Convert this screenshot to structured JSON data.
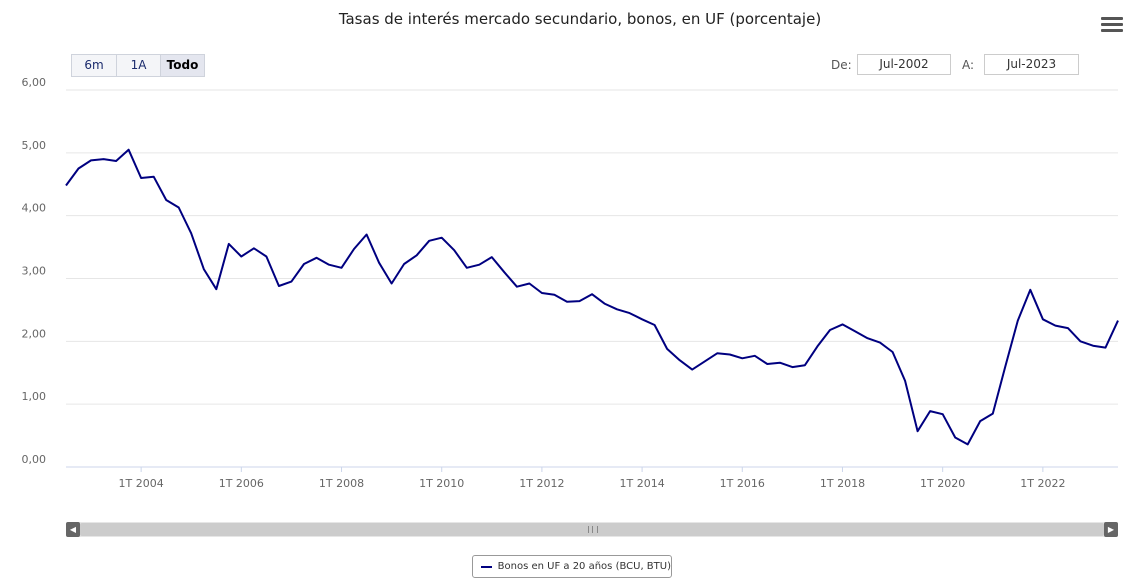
{
  "title": "Tasas de interés mercado secundario, bonos, en UF (porcentaje)",
  "range_buttons": [
    {
      "label": "6m"
    },
    {
      "label": "1A"
    },
    {
      "label": "Todo"
    }
  ],
  "date_from": {
    "label": "De:",
    "value": "Jul-2002"
  },
  "date_to": {
    "label": "A:",
    "value": "Jul-2023"
  },
  "menu_icon": "hamburger-menu-icon",
  "colors": {
    "series": "#000080",
    "grid": "#e6e6e6"
  },
  "chart_data": {
    "type": "line",
    "title": "Tasas de interés mercado secundario, bonos, en UF (porcentaje)",
    "xlabel": "",
    "ylabel": "",
    "xlim": [
      "2002-07",
      "2023-07"
    ],
    "ylim": [
      0,
      6
    ],
    "yticks": [
      "0,00",
      "1,00",
      "2,00",
      "3,00",
      "4,00",
      "5,00",
      "6,00"
    ],
    "xticks": [
      "1T 2004",
      "1T 2006",
      "1T 2008",
      "1T 2010",
      "1T 2012",
      "1T 2014",
      "1T 2016",
      "1T 2018",
      "1T 2020",
      "1T 2022"
    ],
    "grid": true,
    "legend_position": "bottom-center",
    "series": [
      {
        "name": "Bonos en UF a 20 años (BCU, BTU)",
        "color": "#000080",
        "points": [
          [
            "2002-07",
            4.48
          ],
          [
            "2002-10",
            4.75
          ],
          [
            "2003-01",
            4.88
          ],
          [
            "2003-04",
            4.9
          ],
          [
            "2003-07",
            4.87
          ],
          [
            "2003-10",
            5.05
          ],
          [
            "2004-01",
            4.6
          ],
          [
            "2004-04",
            4.62
          ],
          [
            "2004-07",
            4.25
          ],
          [
            "2004-10",
            4.13
          ],
          [
            "2005-01",
            3.72
          ],
          [
            "2005-04",
            3.15
          ],
          [
            "2005-07",
            2.83
          ],
          [
            "2005-10",
            3.55
          ],
          [
            "2006-01",
            3.35
          ],
          [
            "2006-04",
            3.48
          ],
          [
            "2006-07",
            3.35
          ],
          [
            "2006-10",
            2.88
          ],
          [
            "2007-01",
            2.95
          ],
          [
            "2007-04",
            3.23
          ],
          [
            "2007-07",
            3.33
          ],
          [
            "2007-10",
            3.22
          ],
          [
            "2008-01",
            3.17
          ],
          [
            "2008-04",
            3.47
          ],
          [
            "2008-07",
            3.7
          ],
          [
            "2008-10",
            3.25
          ],
          [
            "2009-01",
            2.92
          ],
          [
            "2009-04",
            3.23
          ],
          [
            "2009-07",
            3.37
          ],
          [
            "2009-10",
            3.6
          ],
          [
            "2010-01",
            3.65
          ],
          [
            "2010-04",
            3.45
          ],
          [
            "2010-07",
            3.17
          ],
          [
            "2010-10",
            3.22
          ],
          [
            "2011-01",
            3.34
          ],
          [
            "2011-04",
            3.1
          ],
          [
            "2011-07",
            2.87
          ],
          [
            "2011-10",
            2.92
          ],
          [
            "2012-01",
            2.77
          ],
          [
            "2012-04",
            2.74
          ],
          [
            "2012-07",
            2.63
          ],
          [
            "2012-10",
            2.64
          ],
          [
            "2013-01",
            2.75
          ],
          [
            "2013-04",
            2.6
          ],
          [
            "2013-07",
            2.51
          ],
          [
            "2013-10",
            2.45
          ],
          [
            "2014-01",
            2.35
          ],
          [
            "2014-04",
            2.26
          ],
          [
            "2014-07",
            1.88
          ],
          [
            "2014-10",
            1.7
          ],
          [
            "2015-01",
            1.55
          ],
          [
            "2015-04",
            1.68
          ],
          [
            "2015-07",
            1.81
          ],
          [
            "2015-10",
            1.79
          ],
          [
            "2016-01",
            1.73
          ],
          [
            "2016-04",
            1.77
          ],
          [
            "2016-07",
            1.64
          ],
          [
            "2016-10",
            1.66
          ],
          [
            "2017-01",
            1.59
          ],
          [
            "2017-04",
            1.62
          ],
          [
            "2017-07",
            1.92
          ],
          [
            "2017-10",
            2.18
          ],
          [
            "2018-01",
            2.27
          ],
          [
            "2018-04",
            2.16
          ],
          [
            "2018-07",
            2.05
          ],
          [
            "2018-10",
            1.98
          ],
          [
            "2019-01",
            1.83
          ],
          [
            "2019-04",
            1.37
          ],
          [
            "2019-07",
            0.57
          ],
          [
            "2019-10",
            0.89
          ],
          [
            "2020-01",
            0.84
          ],
          [
            "2020-04",
            0.47
          ],
          [
            "2020-07",
            0.36
          ],
          [
            "2020-10",
            0.73
          ],
          [
            "2021-01",
            0.85
          ],
          [
            "2021-04",
            1.6
          ],
          [
            "2021-07",
            2.33
          ],
          [
            "2021-10",
            2.82
          ],
          [
            "2022-01",
            2.35
          ],
          [
            "2022-04",
            2.25
          ],
          [
            "2022-07",
            2.21
          ],
          [
            "2022-10",
            2.0
          ],
          [
            "2023-01",
            1.93
          ],
          [
            "2023-04",
            1.9
          ],
          [
            "2023-07",
            2.33
          ]
        ]
      }
    ]
  }
}
